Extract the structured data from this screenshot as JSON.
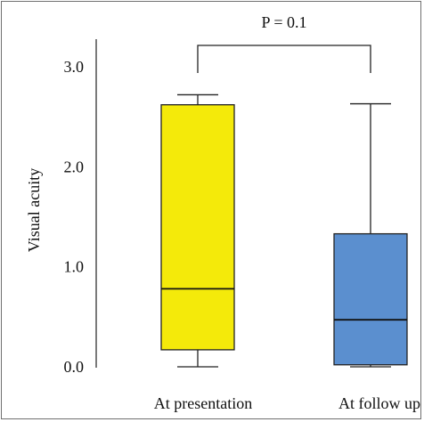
{
  "chart_data": {
    "type": "box",
    "title": "",
    "xlabel": "",
    "ylabel": "Visual acuity",
    "ylim": [
      0.0,
      3.0
    ],
    "yticks": [
      {
        "value": 0.0,
        "label": "0.0"
      },
      {
        "value": 1.0,
        "label": "1.0"
      },
      {
        "value": 2.0,
        "label": "2.0"
      },
      {
        "value": 3.0,
        "label": "3.0"
      }
    ],
    "categories": [
      "At presentation",
      "At follow up"
    ],
    "boxes": [
      {
        "category": "At presentation",
        "min": 0.0,
        "q1": 0.17,
        "median": 0.78,
        "q3": 2.62,
        "max": 2.72,
        "color": "#f4ea0a"
      },
      {
        "category": "At follow up",
        "min": 0.0,
        "q1": 0.02,
        "median": 0.47,
        "q3": 1.33,
        "max": 2.63,
        "color": "#5b8fcf"
      }
    ],
    "annotation": {
      "text": "P = 0.1",
      "between": [
        "At presentation",
        "At follow up"
      ]
    },
    "grid": false,
    "legend": "none"
  }
}
